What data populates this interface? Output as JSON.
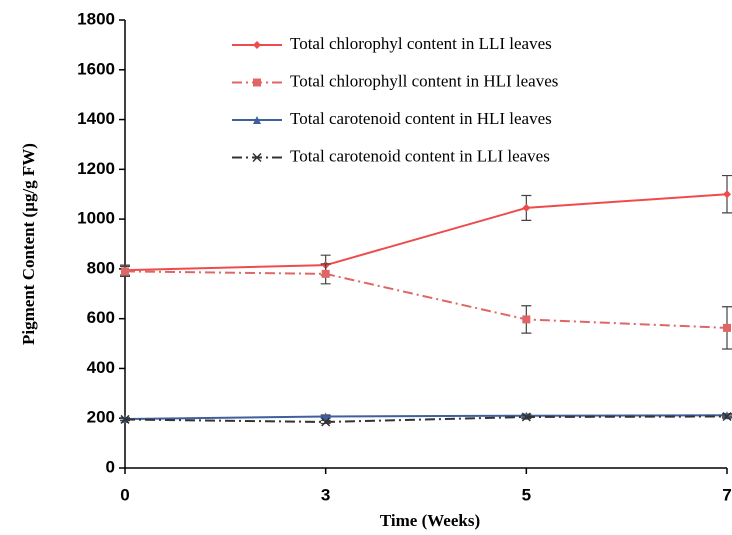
{
  "chart_data": {
    "type": "line",
    "x_label": "Time (Weeks)",
    "y_label": "Pigment Content (µg/g FW)",
    "categories": [
      "0",
      "3",
      "5",
      "7"
    ],
    "ylim": [
      0,
      1800
    ],
    "yticks": [
      0,
      200,
      400,
      600,
      800,
      1000,
      1200,
      1400,
      1600,
      1800
    ],
    "series": [
      {
        "name": "Total chlorophyl content in LLI leaves",
        "color": "#ee4c4c",
        "dash": "solid",
        "marker": "diamond",
        "values": [
          795,
          815,
          1045,
          1100
        ],
        "errors": [
          20,
          40,
          50,
          75
        ]
      },
      {
        "name": "Total chlorophyll content in HLI leaves",
        "color": "#e06666",
        "dash": "dashdot",
        "marker": "square",
        "values": [
          790,
          780,
          597,
          563
        ],
        "errors": [
          20,
          40,
          55,
          85
        ]
      },
      {
        "name": "Total carotenoid content in  HLI leaves",
        "color": "#3f5f9f",
        "dash": "solid",
        "marker": "triangle",
        "values": [
          197,
          207,
          210,
          212
        ],
        "errors": [
          5,
          6,
          6,
          6
        ]
      },
      {
        "name": "Total carotenoid content in  LLI leaves",
        "color": "#333333",
        "dash": "dashdot",
        "marker": "x",
        "values": [
          195,
          185,
          205,
          207
        ],
        "errors": [
          5,
          6,
          6,
          6
        ]
      }
    ]
  }
}
